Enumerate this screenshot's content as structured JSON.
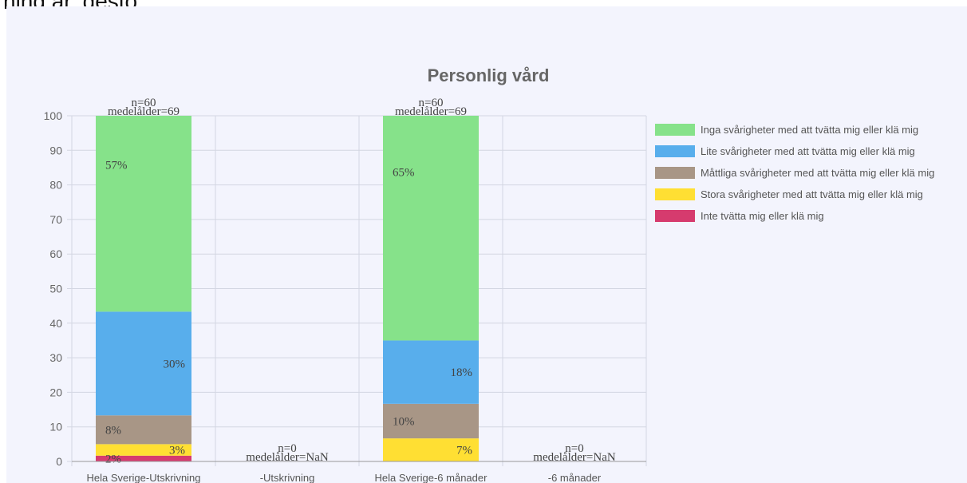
{
  "header_fragment": "ning är, desto",
  "chart_data": {
    "type": "bar",
    "stacked": true,
    "title": "Personlig vård",
    "ylim": [
      0,
      100
    ],
    "yticks": [
      0,
      10,
      20,
      30,
      40,
      50,
      60,
      70,
      80,
      90,
      100
    ],
    "grid": true,
    "legend_position": "right",
    "categories": [
      "Hela Sverige-Utskrivning",
      "-Utskrivning",
      "Hela Sverige-6 månader",
      "-6 månader"
    ],
    "top_labels": [
      {
        "n": "n=60",
        "age": "medelålder=69"
      },
      {
        "n": "n=0",
        "age": "medelålder=NaN"
      },
      {
        "n": "n=60",
        "age": "medelålder=69"
      },
      {
        "n": "n=0",
        "age": "medelålder=NaN"
      }
    ],
    "series": [
      {
        "name": "Inte tvätta mig eller klä mig",
        "color": "#d63b6e",
        "values": [
          1.67,
          0,
          0,
          0
        ],
        "labels": [
          "2%",
          "",
          "",
          ""
        ]
      },
      {
        "name": "Stora svårigheter med att tvätta mig eller klä mig",
        "color": "#ffdf33",
        "values": [
          3.33,
          0,
          6.67,
          0
        ],
        "labels": [
          "3%",
          "",
          "7%",
          ""
        ]
      },
      {
        "name": "Måttliga svårigheter med att tvätta mig eller klä mig",
        "color": "#a89686",
        "values": [
          8.33,
          0,
          10,
          0
        ],
        "labels": [
          "8%",
          "",
          "10%",
          ""
        ]
      },
      {
        "name": "Lite svårigheter med att tvätta mig eller klä mig",
        "color": "#58aeec",
        "values": [
          30,
          0,
          18.33,
          0
        ],
        "labels": [
          "30%",
          "",
          "18%",
          ""
        ]
      },
      {
        "name": "Inga svårigheter med att tvätta mig eller klä mig",
        "color": "#86e28a",
        "values": [
          56.67,
          0,
          65,
          0
        ],
        "labels": [
          "57%",
          "",
          "65%",
          ""
        ]
      }
    ],
    "legend_order": [
      "Inga svårigheter med att tvätta mig eller klä mig",
      "Lite svårigheter med att tvätta mig eller klä mig",
      "Måttliga svårigheter med att tvätta mig eller klä mig",
      "Stora svårigheter med att tvätta mig eller klä mig",
      "Inte tvätta mig eller klä mig"
    ]
  }
}
